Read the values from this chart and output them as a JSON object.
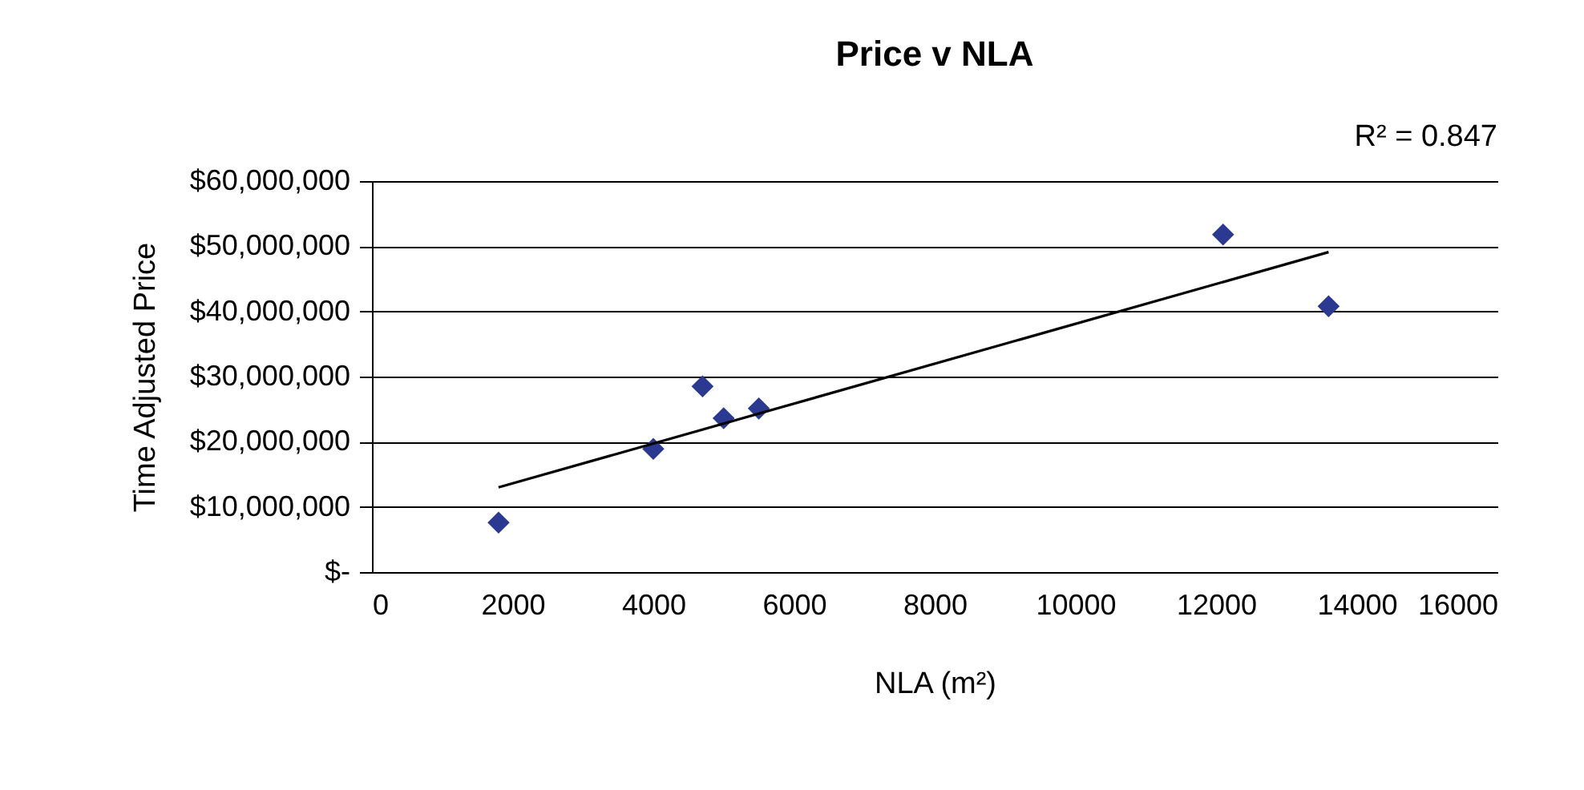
{
  "chart_data": {
    "type": "scatter",
    "title": "Price v NLA",
    "xlabel": "NLA (m²)",
    "ylabel": "Time Adjusted Price",
    "annotations": [
      "R² = 0.847"
    ],
    "xlim": [
      0,
      16000
    ],
    "xticks": [
      0,
      2000,
      4000,
      6000,
      8000,
      10000,
      12000,
      14000,
      16000
    ],
    "ylim": [
      0,
      60000000
    ],
    "yticks": [
      {
        "value": 0,
        "label": "$-"
      },
      {
        "value": 10000000,
        "label": "$10,000,000"
      },
      {
        "value": 20000000,
        "label": "$20,000,000"
      },
      {
        "value": 30000000,
        "label": "$30,000,000"
      },
      {
        "value": 40000000,
        "label": "$40,000,000"
      },
      {
        "value": 50000000,
        "label": "$50,000,000"
      },
      {
        "value": 60000000,
        "label": "$60,000,000"
      }
    ],
    "grid": "y",
    "series": [
      {
        "marker": "diamond",
        "color": "#2b3990",
        "x": [
          1800,
          4000,
          4700,
          5000,
          5500,
          12100,
          13600
        ],
        "values": [
          7600000,
          18900000,
          28500000,
          23600000,
          25100000,
          51800000,
          40800000
        ]
      },
      {
        "type": "line",
        "marker": "none",
        "color": "#000000",
        "x": [
          1800,
          13600
        ],
        "values": [
          13000000,
          49100000
        ]
      }
    ]
  }
}
